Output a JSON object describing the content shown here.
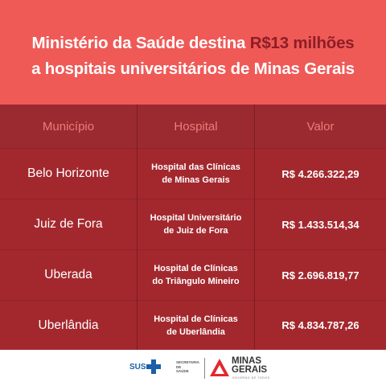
{
  "header": {
    "title_line1_prefix": "Ministério da Saúde destina ",
    "title_line1_highlight": "R$13 milhões",
    "title_line2": "a hospitais universitários de Minas Gerais"
  },
  "table": {
    "columns": [
      "Município",
      "Hospital",
      "Valor"
    ],
    "rows": [
      {
        "municipio": "Belo Horizonte",
        "hospital_line1": "Hospital das Clínicas",
        "hospital_line2": "de Minas Gerais",
        "valor": "R$ 4.266.322,29"
      },
      {
        "municipio": "Juiz de Fora",
        "hospital_line1": "Hospital Universitário",
        "hospital_line2": "de Juiz de Fora",
        "valor": "R$ 1.433.514,34"
      },
      {
        "municipio": "Uberada",
        "hospital_line1": "Hospital de Clínicas",
        "hospital_line2": "do Triângulo Mineiro",
        "valor": "R$ 2.696.819,77"
      },
      {
        "municipio": "Uberlândia",
        "hospital_line1": "Hospital de Clínicas",
        "hospital_line2": "de Uberlândia",
        "valor": "R$ 4.834.787,26"
      }
    ]
  },
  "footer": {
    "sus_label": "SUS",
    "secretaria_line1": "SECRETARIA DE",
    "secretaria_line2": "SAÚDE",
    "mg_line1": "MINAS",
    "mg_line2": "GERAIS",
    "mg_sub": "GOVERNO DE TODOS"
  },
  "colors": {
    "header_bg": "#ef5a57",
    "highlight": "#8e1d25",
    "table_bg": "#a3282e",
    "sus_blue": "#1b5fa8",
    "mg_red": "#e2282d"
  }
}
